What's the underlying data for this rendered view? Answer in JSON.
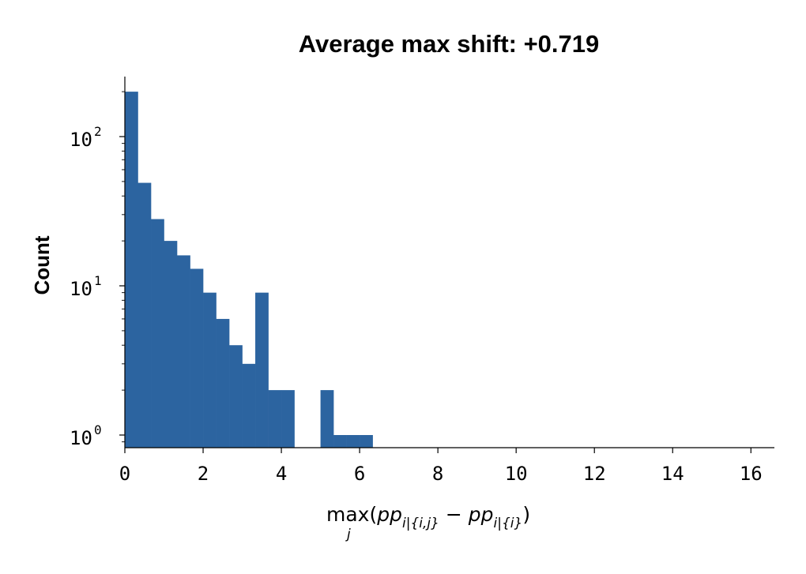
{
  "chart_data": {
    "type": "bar",
    "title": "Average max shift: +0.719",
    "ylabel": "Count",
    "xlabel": "max_j(pp_{i|{i,j}} − pp_{i|{i}})",
    "xlabel_parts": {
      "func": "max",
      "func_sub": "j",
      "open": "(",
      "term1": "pp",
      "term1_sub": "i|{i,j}",
      "minus": " − ",
      "term2": "pp",
      "term2_sub": "i|{i}",
      "close": ")"
    },
    "y_scale": "log",
    "xlim": [
      0,
      16.6
    ],
    "ylim": [
      0.85,
      240
    ],
    "bar_color": "#2c64a0",
    "grid": false,
    "bin_edges": [
      0,
      0.333,
      0.667,
      1.0,
      1.333,
      1.667,
      2.0,
      2.333,
      2.667,
      3.0,
      3.333,
      3.667,
      4.0,
      4.333,
      4.667,
      5.0,
      5.333,
      5.667,
      6.0,
      6.333
    ],
    "counts": [
      200,
      49,
      28,
      20,
      16,
      13,
      9,
      6,
      4,
      3,
      9,
      2,
      2,
      0,
      0,
      2,
      1,
      1,
      1
    ],
    "x_ticks": [
      0,
      2,
      4,
      6,
      8,
      10,
      12,
      14,
      16
    ],
    "x_tick_labels": [
      "0",
      "2",
      "4",
      "6",
      "8",
      "10",
      "12",
      "14",
      "16"
    ],
    "y_ticks": [
      1,
      10,
      100
    ],
    "y_tick_labels": [
      {
        "base": "10",
        "exp": "0"
      },
      {
        "base": "10",
        "exp": "1"
      },
      {
        "base": "10",
        "exp": "2"
      }
    ]
  }
}
